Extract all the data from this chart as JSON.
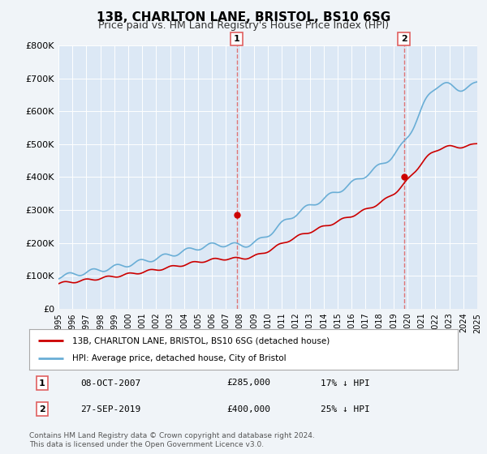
{
  "title": "13B, CHARLTON LANE, BRISTOL, BS10 6SG",
  "subtitle": "Price paid vs. HM Land Registry's House Price Index (HPI)",
  "background_color": "#f0f4f8",
  "plot_bg_color": "#dce8f5",
  "ylabel_values": [
    "£0",
    "£100K",
    "£200K",
    "£300K",
    "£400K",
    "£500K",
    "£600K",
    "£700K",
    "£800K"
  ],
  "ylim": [
    0,
    800000
  ],
  "xlim_start": 1995,
  "xlim_end": 2025,
  "xticks": [
    1995,
    1996,
    1997,
    1998,
    1999,
    2000,
    2001,
    2002,
    2003,
    2004,
    2005,
    2006,
    2007,
    2008,
    2009,
    2010,
    2011,
    2012,
    2013,
    2014,
    2015,
    2016,
    2017,
    2018,
    2019,
    2020,
    2021,
    2022,
    2023,
    2024,
    2025
  ],
  "transaction1_x": 2007.77,
  "transaction1_y": 285000,
  "transaction1_label": "08-OCT-2007",
  "transaction1_price": "£285,000",
  "transaction1_hpi": "17% ↓ HPI",
  "transaction2_x": 2019.74,
  "transaction2_y": 400000,
  "transaction2_label": "27-SEP-2019",
  "transaction2_price": "£400,000",
  "transaction2_hpi": "25% ↓ HPI",
  "hpi_color": "#6aaed6",
  "price_color": "#cc0000",
  "dashed_color": "#e06060",
  "legend_label_price": "13B, CHARLTON LANE, BRISTOL, BS10 6SG (detached house)",
  "legend_label_hpi": "HPI: Average price, detached house, City of Bristol",
  "footer": "Contains HM Land Registry data © Crown copyright and database right 2024.\nThis data is licensed under the Open Government Licence v3.0."
}
